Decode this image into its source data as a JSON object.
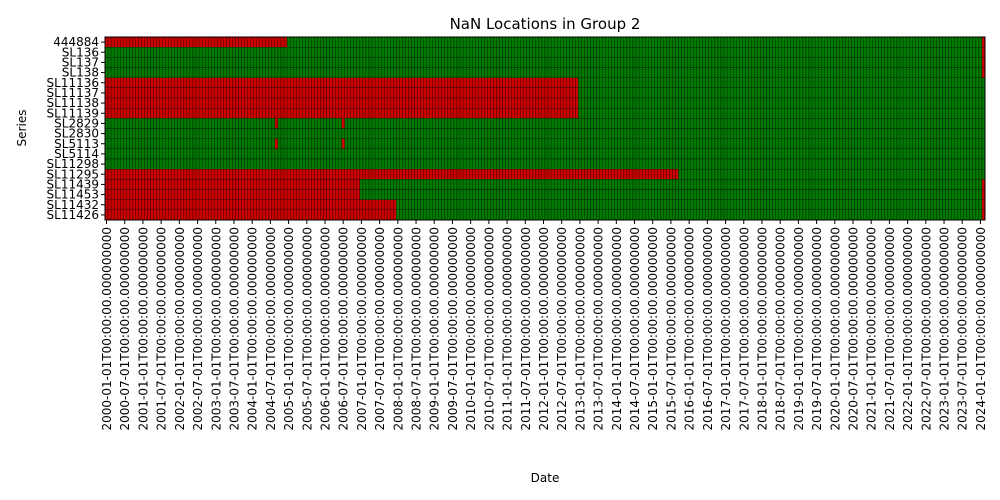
{
  "chart_data": {
    "type": "heatmap",
    "title": "NaN Locations in Group 2",
    "xlabel": "Date",
    "ylabel": "Series",
    "grid": false,
    "legend": "none",
    "colors": {
      "nan": "#cc0000",
      "present": "#007a00",
      "cell_edge": "#000000"
    },
    "x_start": "2000-01",
    "x_end": "2024-02",
    "x_tick_labels": [
      "2000-01-01T00:00:00.000000000",
      "2000-07-01T00:00:00.000000000",
      "2001-01-01T00:00:00.000000000",
      "2001-07-01T00:00:00.000000000",
      "2002-01-01T00:00:00.000000000",
      "2002-07-01T00:00:00.000000000",
      "2003-01-01T00:00:00.000000000",
      "2003-07-01T00:00:00.000000000",
      "2004-01-01T00:00:00.000000000",
      "2004-07-01T00:00:00.000000000",
      "2005-01-01T00:00:00.000000000",
      "2005-07-01T00:00:00.000000000",
      "2006-01-01T00:00:00.000000000",
      "2006-07-01T00:00:00.000000000",
      "2007-01-01T00:00:00.000000000",
      "2007-07-01T00:00:00.000000000",
      "2008-01-01T00:00:00.000000000",
      "2008-07-01T00:00:00.000000000",
      "2009-01-01T00:00:00.000000000",
      "2009-07-01T00:00:00.000000000",
      "2010-01-01T00:00:00.000000000",
      "2010-07-01T00:00:00.000000000",
      "2011-01-01T00:00:00.000000000",
      "2011-07-01T00:00:00.000000000",
      "2012-01-01T00:00:00.000000000",
      "2012-07-01T00:00:00.000000000",
      "2013-01-01T00:00:00.000000000",
      "2013-07-01T00:00:00.000000000",
      "2014-01-01T00:00:00.000000000",
      "2014-07-01T00:00:00.000000000",
      "2015-01-01T00:00:00.000000000",
      "2015-07-01T00:00:00.000000000",
      "2016-01-01T00:00:00.000000000",
      "2016-07-01T00:00:00.000000000",
      "2017-01-01T00:00:00.000000000",
      "2017-07-01T00:00:00.000000000",
      "2018-01-01T00:00:00.000000000",
      "2018-07-01T00:00:00.000000000",
      "2019-01-01T00:00:00.000000000",
      "2019-07-01T00:00:00.000000000",
      "2020-01-01T00:00:00.000000000",
      "2020-07-01T00:00:00.000000000",
      "2021-01-01T00:00:00.000000000",
      "2021-07-01T00:00:00.000000000",
      "2022-01-01T00:00:00.000000000",
      "2022-07-01T00:00:00.000000000",
      "2023-01-01T00:00:00.000000000",
      "2023-07-01T00:00:00.000000000",
      "2024-01-01T00:00:00.000000000"
    ],
    "series": [
      {
        "name": "444884",
        "nan_ranges": [
          [
            "2000-01",
            "2004-12"
          ],
          [
            "2024-02",
            "2024-02"
          ]
        ]
      },
      {
        "name": "SL136",
        "nan_ranges": [
          [
            "2024-02",
            "2024-02"
          ]
        ]
      },
      {
        "name": "SL137",
        "nan_ranges": [
          [
            "2024-02",
            "2024-02"
          ]
        ]
      },
      {
        "name": "SL138",
        "nan_ranges": [
          [
            "2024-02",
            "2024-02"
          ]
        ]
      },
      {
        "name": "SL11136",
        "nan_ranges": [
          [
            "2000-01",
            "2012-12"
          ]
        ]
      },
      {
        "name": "SL11137",
        "nan_ranges": [
          [
            "2000-01",
            "2012-12"
          ]
        ]
      },
      {
        "name": "SL11138",
        "nan_ranges": [
          [
            "2000-01",
            "2012-12"
          ]
        ]
      },
      {
        "name": "SL11139",
        "nan_ranges": [
          [
            "2000-01",
            "2012-12"
          ]
        ]
      },
      {
        "name": "SL2829",
        "nan_ranges": [
          [
            "2004-09",
            "2004-09"
          ],
          [
            "2006-07",
            "2006-07"
          ]
        ]
      },
      {
        "name": "SL2830",
        "nan_ranges": []
      },
      {
        "name": "SL5113",
        "nan_ranges": [
          [
            "2004-09",
            "2004-09"
          ],
          [
            "2006-07",
            "2006-07"
          ]
        ]
      },
      {
        "name": "SL5114",
        "nan_ranges": []
      },
      {
        "name": "SL11298",
        "nan_ranges": []
      },
      {
        "name": "SL11295",
        "nan_ranges": [
          [
            "2000-01",
            "2015-09"
          ]
        ]
      },
      {
        "name": "SL11439",
        "nan_ranges": [
          [
            "2000-01",
            "2006-12"
          ],
          [
            "2024-02",
            "2024-02"
          ]
        ]
      },
      {
        "name": "SL11453",
        "nan_ranges": [
          [
            "2000-01",
            "2006-12"
          ],
          [
            "2024-02",
            "2024-02"
          ]
        ]
      },
      {
        "name": "SL11432",
        "nan_ranges": [
          [
            "2000-01",
            "2007-12"
          ],
          [
            "2024-02",
            "2024-02"
          ]
        ]
      },
      {
        "name": "SL11426",
        "nan_ranges": [
          [
            "2000-01",
            "2007-12"
          ],
          [
            "2024-02",
            "2024-02"
          ]
        ]
      }
    ]
  }
}
